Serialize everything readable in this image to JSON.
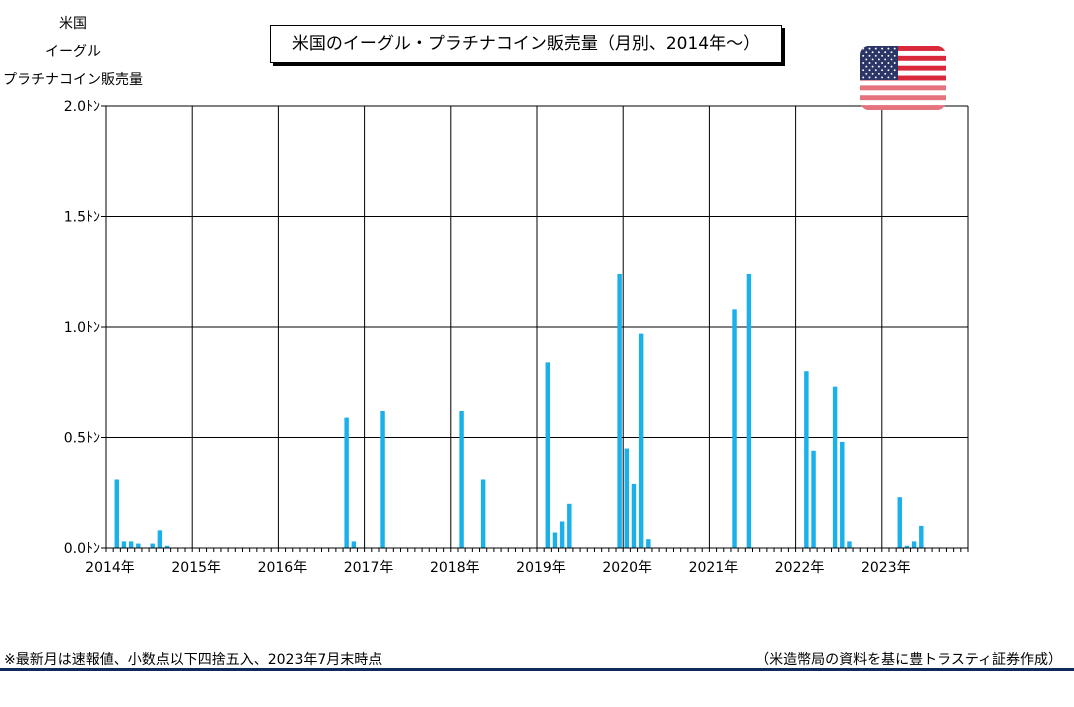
{
  "ylabel_lines": [
    "米国",
    "イーグル",
    "プラチナコイン販売量"
  ],
  "title": "米国のイーグル・プラチナコイン販売量（月別、2014年～）",
  "footnote": "※最新月は速報値、小数点以下四捨五入、2023年7月末時点",
  "source": "（米造幣局の資料を基に豊トラスティ証券作成）",
  "flag_icon": "us-flag-icon",
  "colors": {
    "bar": "#1ab0ea",
    "grid": "#000000",
    "flag_red": "#d8283a",
    "flag_blue": "#2b3566"
  },
  "chart_data": {
    "type": "bar",
    "ylim": [
      0,
      2.0
    ],
    "y_ticks": [
      0.0,
      0.5,
      1.0,
      1.5,
      2.0
    ],
    "y_tick_labels": [
      "0.0ﾄﾝ",
      "0.5ﾄﾝ",
      "1.0ﾄﾝ",
      "1.5ﾄﾝ",
      "2.0ﾄﾝ"
    ],
    "year_labels": [
      "2014年",
      "2015年",
      "2016年",
      "2017年",
      "2018年",
      "2019年",
      "2020年",
      "2021年",
      "2022年",
      "2023年"
    ],
    "x_start": "2014-01",
    "grid": true,
    "series": [
      {
        "values": [
          0,
          0.31,
          0.03,
          0.03,
          0.02,
          0,
          0.02,
          0.08,
          0.01,
          0,
          0,
          0,
          0,
          0,
          0,
          0,
          0,
          0,
          0,
          0,
          0,
          0,
          0,
          0,
          0,
          0,
          0,
          0,
          0,
          0,
          0,
          0,
          0,
          0.59,
          0.03,
          0,
          0,
          0,
          0.62,
          0,
          0,
          0,
          0,
          0,
          0,
          0,
          0,
          0,
          0,
          0.62,
          0,
          0,
          0.31,
          0,
          0,
          0,
          0,
          0,
          0,
          0,
          0,
          0.84,
          0.07,
          0.12,
          0.2,
          0,
          0,
          0,
          0,
          0,
          0,
          1.24,
          0.45,
          0.29,
          0.97,
          0.04,
          0,
          0,
          0,
          0,
          0,
          0,
          0,
          0,
          0,
          0,
          0,
          1.08,
          0,
          1.24,
          0,
          0,
          0,
          0,
          0,
          0,
          0,
          0.8,
          0.44,
          0,
          0,
          0.73,
          0.48,
          0.03,
          0,
          0,
          0,
          0,
          0,
          0,
          0.23,
          0.01,
          0.03,
          0.1,
          0
        ]
      }
    ]
  }
}
